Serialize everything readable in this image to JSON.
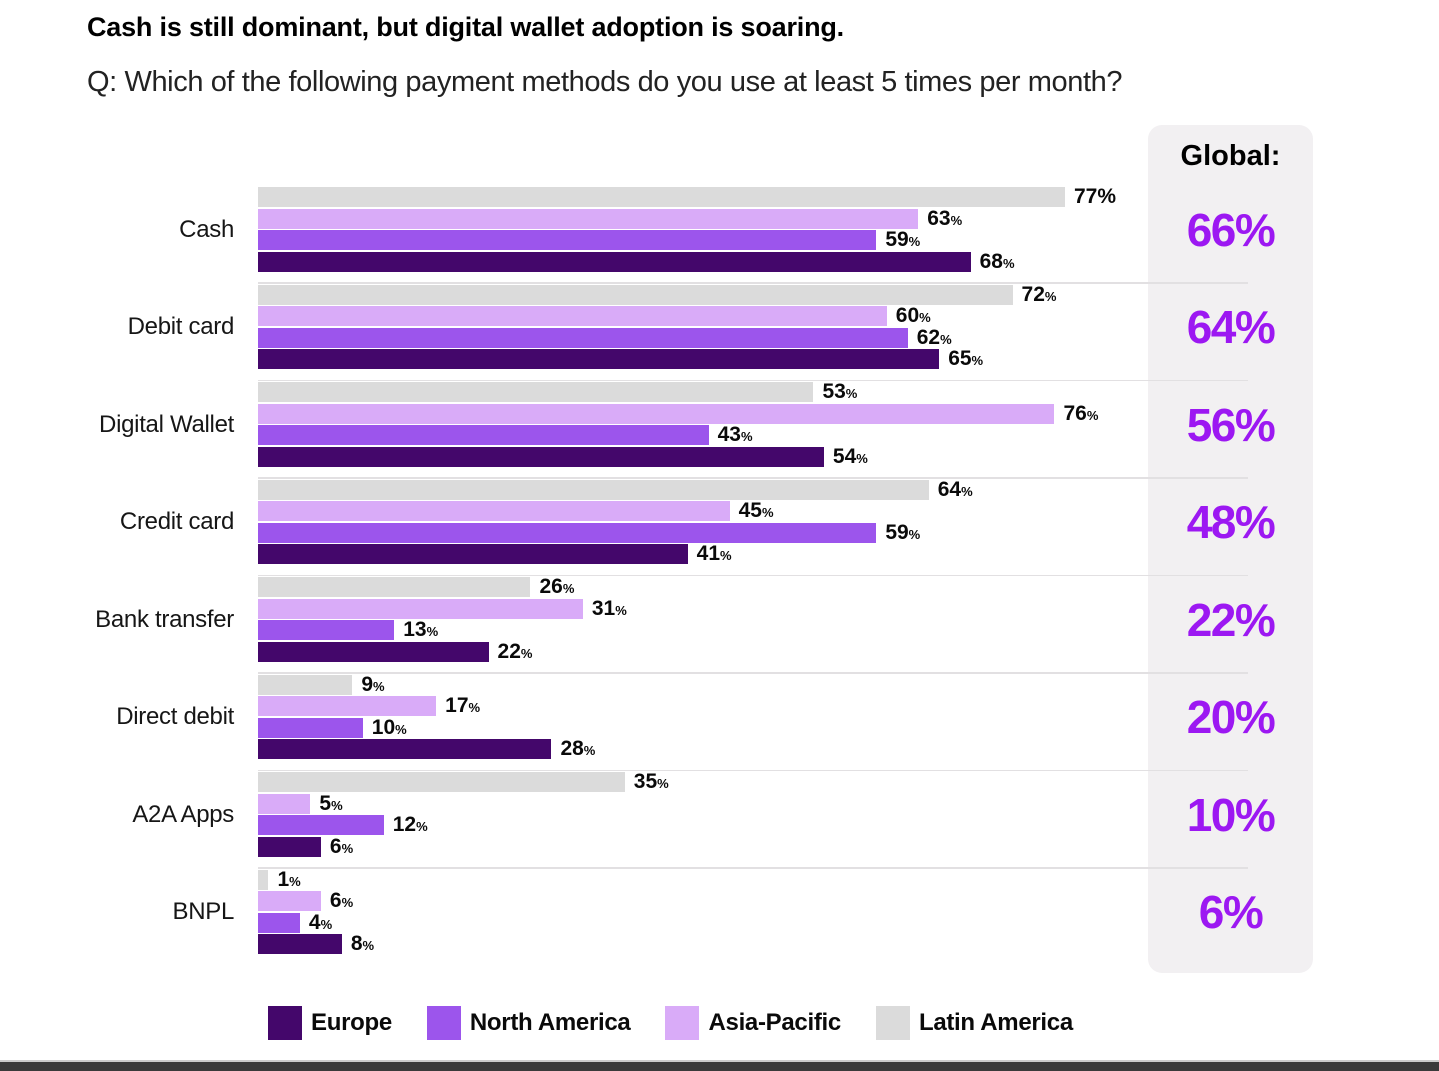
{
  "title": "Cash is still dominant, but digital wallet adoption is soaring.",
  "subtitle": "Q: Which of the following payment methods do you use at least 5 times per month?",
  "global_header": "Global:",
  "chart_data": {
    "type": "bar",
    "orientation": "horizontal",
    "title": "Cash is still dominant, but digital wallet adoption is soaring.",
    "subtitle": "Q: Which of the following payment methods do you use at least 5 times per month?",
    "xlim": [
      0,
      100
    ],
    "grid": false,
    "value_suffix": "%",
    "categories": [
      "Cash",
      "Debit card",
      "Digital Wallet",
      "Credit card",
      "Bank transfer",
      "Direct debit",
      "A2A Apps",
      "BNPL"
    ],
    "series": [
      {
        "name": "Latin America",
        "color": "#DBDBDB",
        "values": [
          77,
          72,
          53,
          64,
          26,
          9,
          35,
          1
        ]
      },
      {
        "name": "Asia-Pacific",
        "color": "#D9ABF8",
        "values": [
          63,
          60,
          76,
          45,
          31,
          17,
          5,
          6
        ]
      },
      {
        "name": "North America",
        "color": "#9C55EC",
        "values": [
          59,
          62,
          43,
          59,
          13,
          10,
          12,
          4
        ]
      },
      {
        "name": "Europe",
        "color": "#44076B",
        "values": [
          68,
          65,
          54,
          41,
          22,
          28,
          6,
          8
        ]
      }
    ],
    "global_column": {
      "header": "Global:",
      "values": [
        "66%",
        "64%",
        "56%",
        "48%",
        "22%",
        "20%",
        "10%",
        "6%"
      ],
      "value_color": "#9C18F2"
    },
    "full_size_percent_label": {
      "category_index": 0,
      "series_index": 0
    },
    "legend_position": "bottom"
  },
  "legend": [
    {
      "label": "Europe",
      "color": "#44076B"
    },
    {
      "label": "North America",
      "color": "#9C55EC"
    },
    {
      "label": "Asia-Pacific",
      "color": "#D9ABF8"
    },
    {
      "label": "Latin America",
      "color": "#DBDBDB"
    }
  ],
  "colors": {
    "global_value": "#9C18F2",
    "panel_bg": "#F2F0F2",
    "row_separator": "#E2E0E2",
    "bottom_bar": "#3a3a3a"
  }
}
